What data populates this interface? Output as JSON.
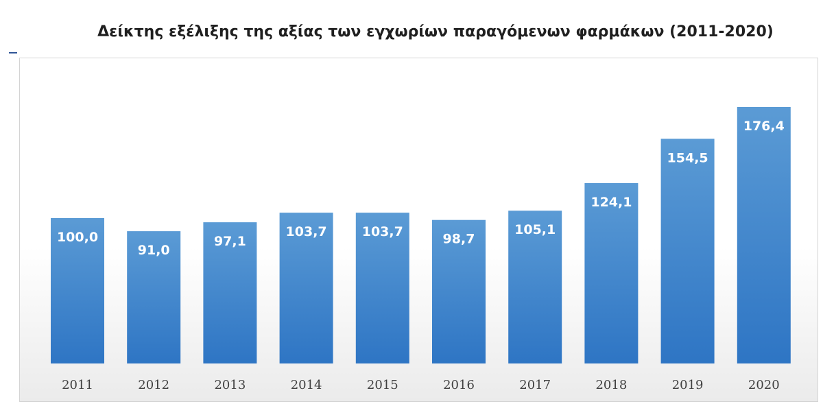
{
  "chart_data": {
    "type": "bar",
    "title": "Δείκτης εξέλιξης της αξίας των εγχωρίων παραγόμενων φαρμάκων (2011-2020)",
    "categories": [
      "2011",
      "2012",
      "2013",
      "2014",
      "2015",
      "2016",
      "2017",
      "2018",
      "2019",
      "2020"
    ],
    "values": [
      100.0,
      91.0,
      97.1,
      103.7,
      103.7,
      98.7,
      105.1,
      124.1,
      154.5,
      176.4
    ],
    "value_labels": [
      "100,0",
      "91,0",
      "97,1",
      "103,7",
      "103,7",
      "98,7",
      "105,1",
      "124,1",
      "154,5",
      "176,4"
    ],
    "xlabel": "",
    "ylabel": "",
    "ylim": [
      0,
      176.4
    ],
    "grid": false,
    "legend": "none",
    "bar_color_top": "#5b9bd5",
    "bar_color_bottom": "#2e75c4",
    "label_color": "#ffffff"
  }
}
